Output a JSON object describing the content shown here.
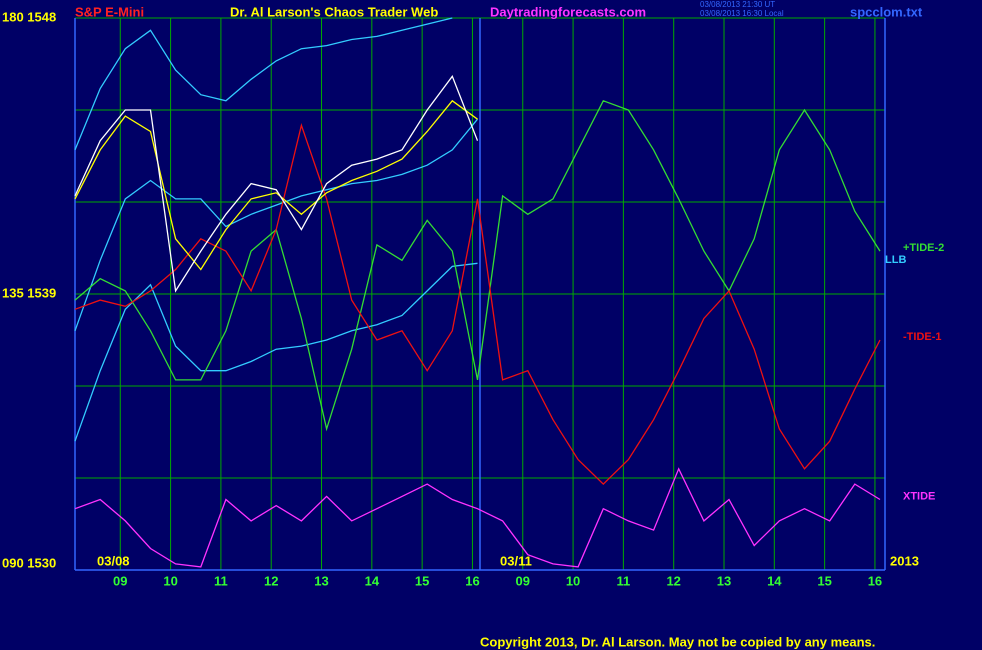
{
  "chart_data": {
    "type": "line",
    "symbol": "S&P E-Mini",
    "title": "Dr. Al Larson's Chaos Trader Web",
    "site": "Daytradingforecasts.com",
    "timestamps": [
      "03/08/2013 21:30 UT",
      "03/08/2013 16:30 Local"
    ],
    "file": "spcclom.txt",
    "date_labels": [
      "03/08",
      "03/11",
      "2013"
    ],
    "copyright": "Copyright 2013, Dr. Al Larson. May not be copied by any means.",
    "x": [
      0,
      0.5,
      1,
      1.5,
      2,
      2.5,
      3,
      3.5,
      4,
      4.5,
      5,
      5.5,
      6,
      6.5,
      7,
      7.5,
      8,
      8.5,
      9,
      9.5,
      10,
      10.5,
      11,
      11.5,
      12,
      12.5,
      13,
      13.5,
      14,
      14.5,
      15,
      15.5,
      16
    ],
    "xlim": [
      0,
      16.1
    ],
    "xticks": [
      {
        "value": 0.9,
        "label": "09"
      },
      {
        "value": 1.9,
        "label": "10"
      },
      {
        "value": 2.9,
        "label": "11"
      },
      {
        "value": 3.9,
        "label": "12"
      },
      {
        "value": 4.9,
        "label": "13"
      },
      {
        "value": 5.9,
        "label": "14"
      },
      {
        "value": 6.9,
        "label": "15"
      },
      {
        "value": 7.9,
        "label": "16"
      },
      {
        "value": 8.9,
        "label": "09"
      },
      {
        "value": 9.9,
        "label": "10"
      },
      {
        "value": 10.9,
        "label": "11"
      },
      {
        "value": 11.9,
        "label": "12"
      },
      {
        "value": 12.9,
        "label": "13"
      },
      {
        "value": 13.9,
        "label": "14"
      },
      {
        "value": 14.9,
        "label": "15"
      },
      {
        "value": 15.9,
        "label": "16"
      }
    ],
    "ylim": [
      1530,
      1548
    ],
    "yticks": [
      {
        "value": 1548,
        "label": "180 1548"
      },
      {
        "value": 1539,
        "label": "135 1539"
      },
      {
        "value": 1530,
        "label": "090 1530"
      }
    ],
    "ygrid": [
      1533,
      1536,
      1542,
      1545
    ],
    "grid": true,
    "series": [
      {
        "color": "#33ccff",
        "values": [
          1543.7,
          1545.7,
          1547.0,
          1547.6,
          1546.3,
          1545.5,
          1545.3,
          1546.0,
          1546.6,
          1547.0,
          1547.1,
          1547.3,
          1547.4,
          1547.6,
          1547.8,
          1548.0,
          null,
          null,
          null,
          null,
          null,
          null,
          null,
          null,
          null,
          null,
          null,
          null,
          null,
          null,
          null,
          null,
          null
        ]
      },
      {
        "color": "#33ccff",
        "values": [
          1537.8,
          1540.1,
          1542.1,
          1542.7,
          1542.1,
          1542.1,
          1541.2,
          1541.6,
          1541.9,
          1542.2,
          1542.4,
          1542.6,
          1542.7,
          1542.9,
          1543.2,
          1543.7,
          1544.7,
          null,
          null,
          null,
          null,
          null,
          null,
          null,
          null,
          null,
          null,
          null,
          null,
          null,
          null,
          null,
          null
        ]
      },
      {
        "name": "LLB",
        "color": "#33ccff",
        "values": [
          1534.2,
          1536.5,
          1538.5,
          1539.3,
          1537.3,
          1536.5,
          1536.5,
          1536.8,
          1537.2,
          1537.3,
          1537.5,
          1537.8,
          1538.0,
          1538.3,
          1539.1,
          1539.9,
          1540.0,
          null,
          null,
          null,
          null,
          null,
          null,
          null,
          null,
          null,
          null,
          null,
          null,
          null,
          null,
          null,
          null
        ]
      },
      {
        "name": "+TIDE-2",
        "color": "#33dd33",
        "values": [
          1538.8,
          1539.5,
          1539.1,
          1537.8,
          1536.2,
          1536.2,
          1537.8,
          1540.4,
          1541.1,
          1538.2,
          1534.6,
          1537.2,
          1540.6,
          1540.1,
          1541.4,
          1540.4,
          1536.2,
          1542.2,
          1541.6,
          1542.1,
          1543.7,
          1545.3,
          1545.0,
          1543.7,
          1542.1,
          1540.4,
          1539.1,
          1540.8,
          1543.7,
          1545.0,
          1543.7,
          1541.7,
          1540.4
        ]
      },
      {
        "name": "-TIDE-1",
        "color": "#ee1111",
        "values": [
          1538.5,
          1538.8,
          1538.6,
          1539.1,
          1539.8,
          1540.8,
          1540.4,
          1539.1,
          1541.1,
          1544.5,
          1542.1,
          1538.8,
          1537.5,
          1537.8,
          1536.5,
          1537.8,
          1542.1,
          1536.2,
          1536.5,
          1534.9,
          1533.6,
          1532.8,
          1533.6,
          1534.9,
          1536.5,
          1538.2,
          1539.1,
          1537.2,
          1534.6,
          1533.3,
          1534.2,
          1535.9,
          1537.5
        ]
      },
      {
        "name": "XTIDE",
        "color": "#ff33ff",
        "values": [
          1532.0,
          1532.3,
          1531.6,
          1530.7,
          1530.2,
          1530.1,
          1532.3,
          1531.6,
          1532.1,
          1531.6,
          1532.4,
          1531.6,
          1532.0,
          1532.4,
          1532.8,
          1532.3,
          1532.0,
          1531.6,
          1530.5,
          1530.2,
          1530.1,
          1532.0,
          1531.6,
          1531.3,
          1533.3,
          1531.6,
          1532.3,
          1530.8,
          1531.6,
          1532.0,
          1531.6,
          1532.8,
          1532.3
        ]
      },
      {
        "color": "#ffff00",
        "values": [
          1542.1,
          1543.7,
          1544.8,
          1544.3,
          1540.8,
          1539.8,
          1541.1,
          1542.1,
          1542.3,
          1541.6,
          1542.3,
          1542.7,
          1543.0,
          1543.4,
          1544.3,
          1545.3,
          1544.7,
          null,
          null,
          null,
          null,
          null,
          null,
          null,
          null,
          null,
          null,
          null,
          null,
          null,
          null,
          null,
          null
        ]
      },
      {
        "color": "#ffffff",
        "values": [
          1542.2,
          1544.0,
          1545.0,
          1545.0,
          1539.1,
          1540.4,
          1541.6,
          1542.6,
          1542.4,
          1541.1,
          1542.6,
          1543.2,
          1543.4,
          1543.7,
          1545.0,
          1546.1,
          1544.0,
          null,
          null,
          null,
          null,
          null,
          null,
          null,
          null,
          null,
          null,
          null,
          null,
          null,
          null,
          null,
          null
        ]
      }
    ]
  }
}
